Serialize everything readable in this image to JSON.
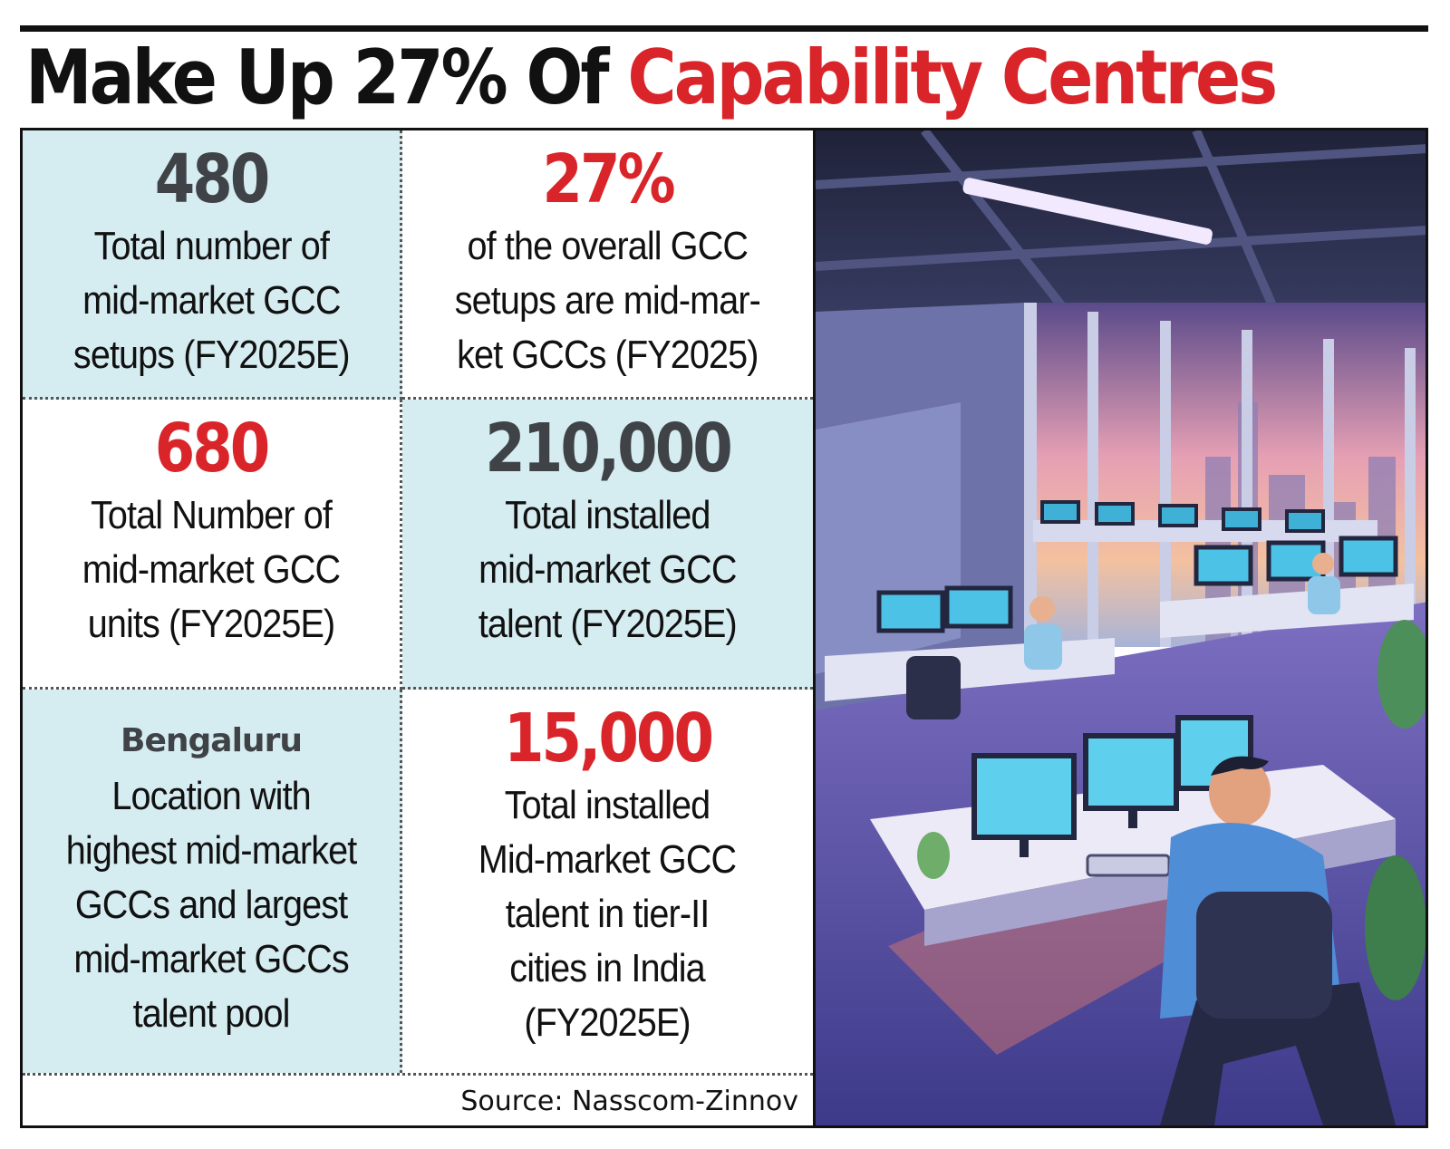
{
  "headline": {
    "black_part": "Make Up 27% Of",
    "red_part": "Capability Centres"
  },
  "stats": [
    {
      "value": "480",
      "text": [
        "Total number of",
        "mid-market GCC",
        "setups (FY2025E)"
      ]
    },
    {
      "value": "27%",
      "text": [
        "of the overall GCC",
        "setups are mid-mar-",
        "ket GCCs (FY2025)"
      ]
    },
    {
      "value": "680",
      "text": [
        "Total Number of",
        "mid-market GCC",
        "units (FY2025E)"
      ]
    },
    {
      "value": "210,000",
      "text": [
        "Total installed",
        "mid-market GCC",
        "talent (FY2025E)"
      ]
    },
    {
      "value": "Bengaluru",
      "text": [
        "Location with",
        "highest mid-market",
        "GCCs and largest",
        "mid-market GCCs",
        "talent pool"
      ]
    },
    {
      "value": "15,000",
      "text": [
        "Total installed",
        "Mid-market GCC",
        "talent in tier-II",
        "cities in India",
        "(FY2025E)"
      ]
    }
  ],
  "source": "Source: Nasscom-Zinnov",
  "colors": {
    "accent_red": "#d9252a",
    "value_gray": "#3f4347",
    "cell_blue": "#d5ecf1"
  }
}
